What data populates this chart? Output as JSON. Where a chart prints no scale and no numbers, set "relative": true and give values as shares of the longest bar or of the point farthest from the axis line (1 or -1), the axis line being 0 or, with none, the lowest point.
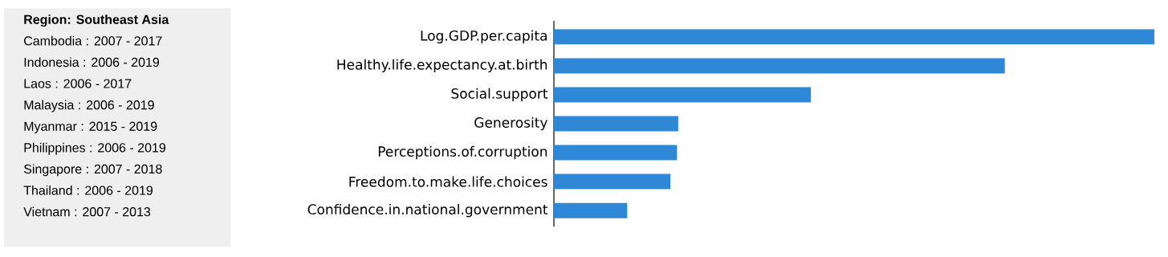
{
  "chart_data": [
    {
      "type": "other",
      "title": "Region:  Southeast Asia",
      "annotations": [
        "Cambodia :  2007 - 2017",
        "Indonesia :  2006 - 2019",
        "Laos :  2006 - 2017",
        "Malaysia :  2006 - 2019",
        "Myanmar :  2015 - 2019",
        "Philippines :  2006 - 2019",
        "Singapore :  2007 - 2018",
        "Thailand :  2006 - 2019",
        "Vietnam :  2007 - 2013"
      ]
    },
    {
      "type": "bar",
      "orientation": "horizontal",
      "relative": true,
      "color": "#2e88d6",
      "categories": [
        "Log.GDP.per.capita",
        "Healthy.life.expectancy.at.birth",
        "Social.support",
        "Generosity",
        "Perceptions.of.corruption",
        "Freedom.to.make.life.choices",
        "Confidence.in.national.government"
      ],
      "values": [
        1,
        0.751,
        0.428,
        0.207,
        0.205,
        0.194,
        0.122
      ]
    }
  ]
}
